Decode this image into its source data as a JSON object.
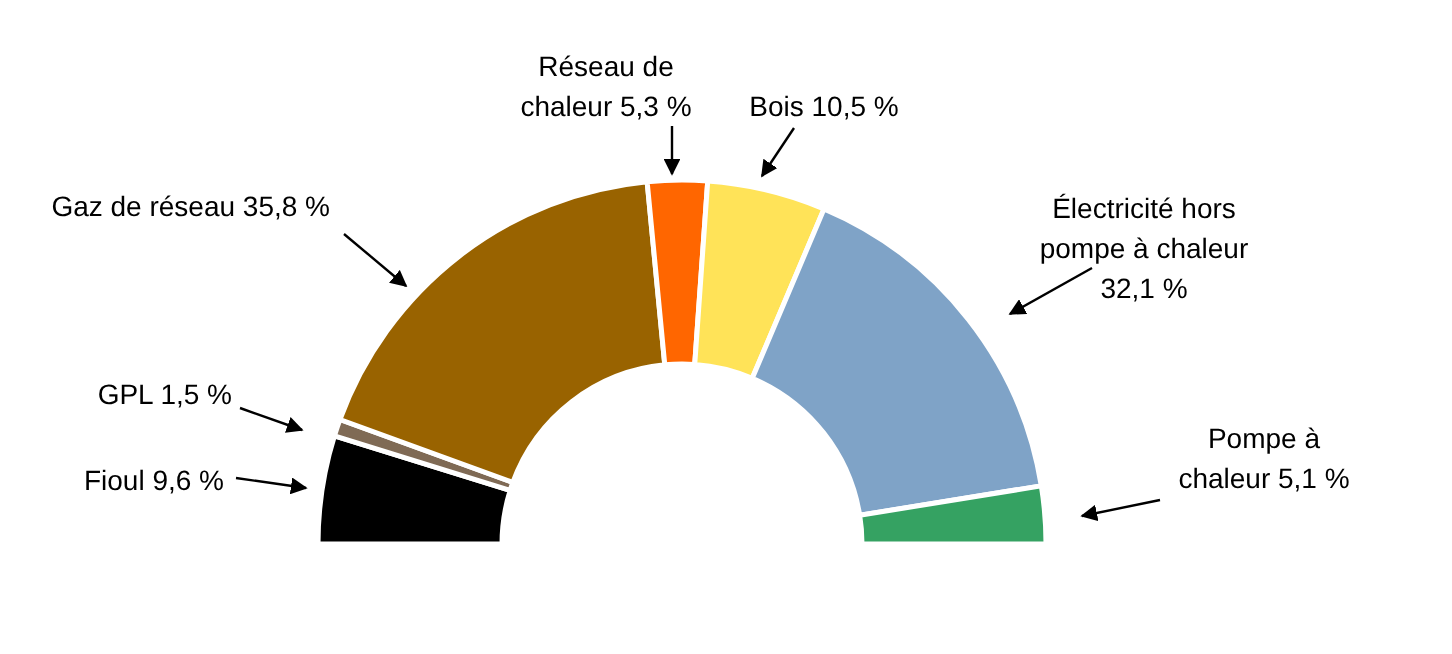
{
  "chart_data": {
    "type": "donut",
    "categories": [
      "Fioul",
      "GPL",
      "Gaz de réseau",
      "Réseau de chaleur",
      "Bois",
      "Électricité hors pompe à chaleur",
      "Pompe à chaleur"
    ],
    "values": [
      9.6,
      1.5,
      35.8,
      5.3,
      10.5,
      32.1,
      5.1
    ],
    "value_labels": [
      "9,6 %",
      "1,5 %",
      "35,8 %",
      "5,3 %",
      "10,5 %",
      "32,1 %",
      "5,1 %"
    ],
    "colors": [
      "#000000",
      "#7f6a55",
      "#996300",
      "#ff6600",
      "#ffe358",
      "#7fa3c7",
      "#35a262"
    ]
  }
}
